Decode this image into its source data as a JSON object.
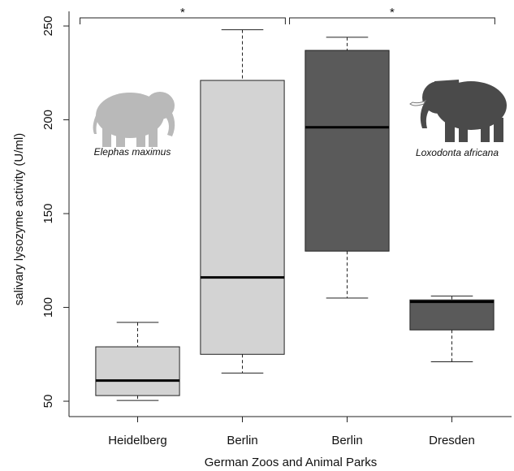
{
  "chart_data": {
    "type": "box",
    "y_label": "salivary lysozyme activity (U/ml)",
    "x_label": "German Zoos and Animal Parks",
    "categories": [
      "Heidelberg",
      "Berlin",
      "Berlin",
      "Dresden"
    ],
    "boxes": [
      {
        "min": 50.4,
        "q1": 53,
        "median": 61,
        "q3": 79,
        "max": 92,
        "color": "#d3d3d3"
      },
      {
        "min": 65,
        "q1": 75,
        "median": 116,
        "q3": 221,
        "max": 248,
        "color": "#d3d3d3"
      },
      {
        "min": 105,
        "q1": 130,
        "median": 196,
        "q3": 237,
        "max": 244,
        "color": "#5a5a5a"
      },
      {
        "min": 71,
        "q1": 88,
        "median": 103,
        "q3": 104,
        "max": 106,
        "color": "#5a5a5a"
      }
    ],
    "ylim": [
      41.8,
      257.8
    ],
    "yticks": [
      50,
      100,
      150,
      200,
      250
    ],
    "significance": [
      {
        "categories": [
          0,
          1
        ],
        "label": "*"
      },
      {
        "categories": [
          2,
          3
        ],
        "label": "*"
      }
    ],
    "species_labels": [
      "Elephas maximus",
      "Loxodonta africana"
    ]
  }
}
